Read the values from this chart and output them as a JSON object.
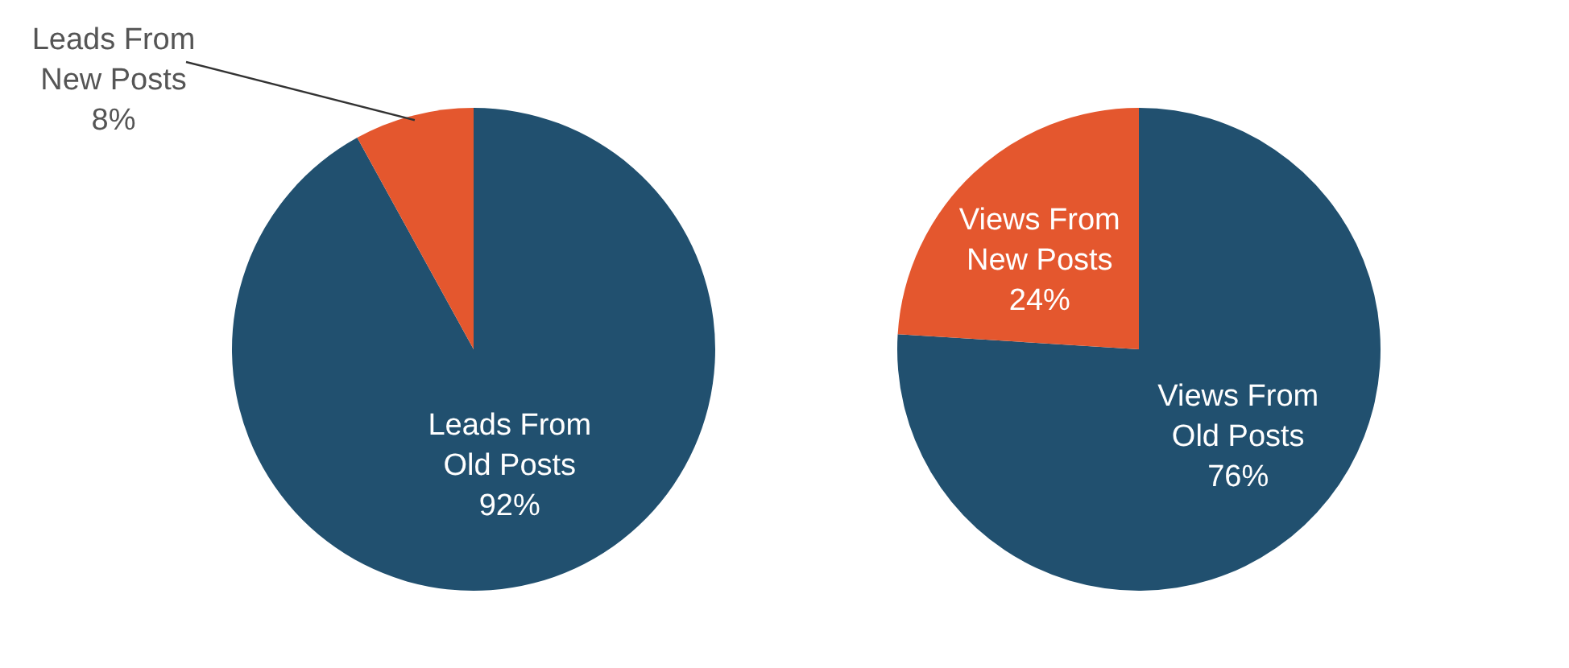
{
  "chart_data": [
    {
      "type": "pie",
      "categories": [
        "Leads From Old Posts",
        "Leads From New Posts"
      ],
      "values": [
        92,
        8
      ],
      "value_labels": [
        "92%",
        "8%"
      ],
      "colors": [
        "#21506f",
        "#e4572e"
      ],
      "legend": false
    },
    {
      "type": "pie",
      "categories": [
        "Views From Old Posts",
        "Views From New Posts"
      ],
      "values": [
        76,
        24
      ],
      "value_labels": [
        "76%",
        "24%"
      ],
      "colors": [
        "#21506f",
        "#e4572e"
      ],
      "legend": false
    }
  ]
}
